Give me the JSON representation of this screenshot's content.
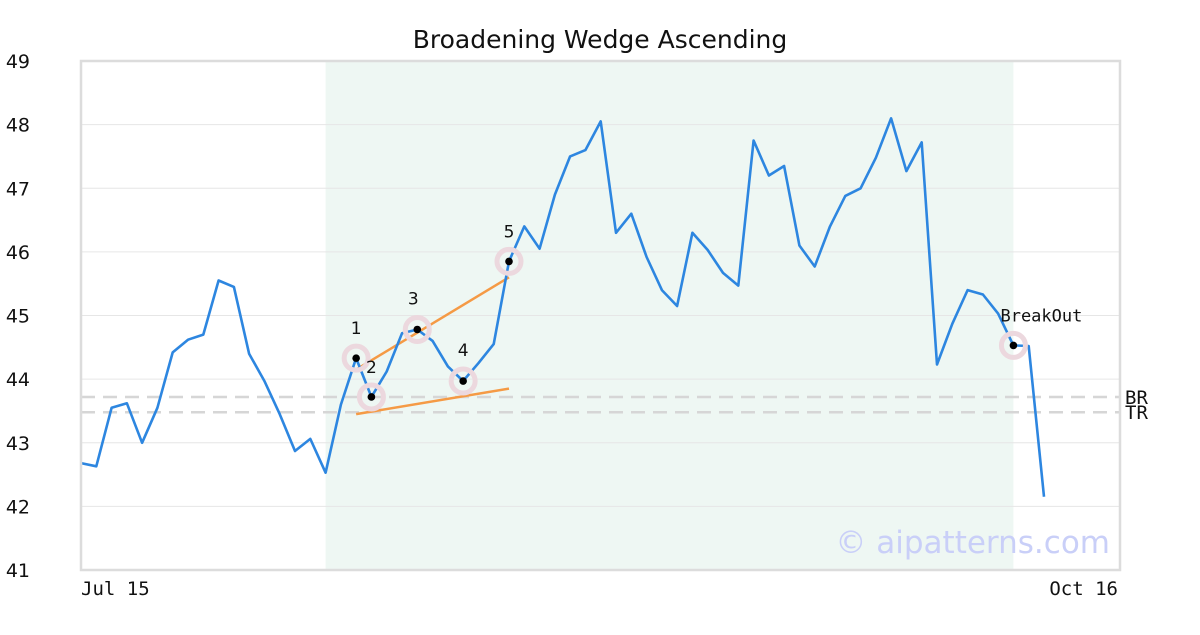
{
  "chart_data": {
    "type": "line",
    "title": "Broadening Wedge Ascending",
    "x_tick_labels": [
      "Jul 15",
      "Oct 16"
    ],
    "y_ticks": [
      41,
      42,
      43,
      44,
      45,
      46,
      47,
      48,
      49
    ],
    "ylim": [
      41,
      49
    ],
    "grid": true,
    "series": [
      {
        "values": [
          42.68,
          42.63,
          43.55,
          43.62,
          43.0,
          43.55,
          44.42,
          44.62,
          44.7,
          45.55,
          45.45,
          44.4,
          43.97,
          43.45,
          42.87,
          43.06,
          42.53,
          43.6,
          44.33,
          43.72,
          44.12,
          44.72,
          44.78,
          44.6,
          44.2,
          43.97,
          44.25,
          44.55,
          45.85,
          46.4,
          46.05,
          46.9,
          47.5,
          47.6,
          48.05,
          46.3,
          46.6,
          45.92,
          45.4,
          45.15,
          46.3,
          46.03,
          45.67,
          45.47,
          47.75,
          47.2,
          47.35,
          46.1,
          45.77,
          46.4,
          46.88,
          47.0,
          47.48,
          48.1,
          47.27,
          47.72,
          44.23,
          44.87,
          45.4,
          45.33,
          45.03,
          44.53,
          44.52,
          42.15
        ],
        "color": "#2d86e0"
      }
    ],
    "pattern_points": [
      {
        "label": "1",
        "index": 18,
        "value": 44.33
      },
      {
        "label": "2",
        "index": 19,
        "value": 43.72
      },
      {
        "label": "3",
        "index": 22,
        "value": 44.78
      },
      {
        "label": "4",
        "index": 25,
        "value": 43.97
      },
      {
        "label": "5",
        "index": 28,
        "value": 45.85
      }
    ],
    "breakout": {
      "label": "BreakOut",
      "index": 61,
      "value": 44.53
    },
    "trendlines": [
      {
        "from_index": 18,
        "from_value": 44.15,
        "to_index": 28,
        "to_value": 45.6
      },
      {
        "from_index": 18,
        "from_value": 43.45,
        "to_index": 28,
        "to_value": 43.85
      }
    ],
    "reference_lines": [
      {
        "label": "BR",
        "value": 43.72
      },
      {
        "label": "TR",
        "value": 43.48
      }
    ],
    "pattern_region": {
      "start_index": 16,
      "end_index": 61
    },
    "watermark": "© aipatterns.com",
    "colors": {
      "line": "#2d86e0",
      "trendline": "#f59a45",
      "region": "#eef7f3",
      "marker_halo": "#ecd8de",
      "reference": "#d6d6d6",
      "watermark": "#c9cff8"
    }
  }
}
